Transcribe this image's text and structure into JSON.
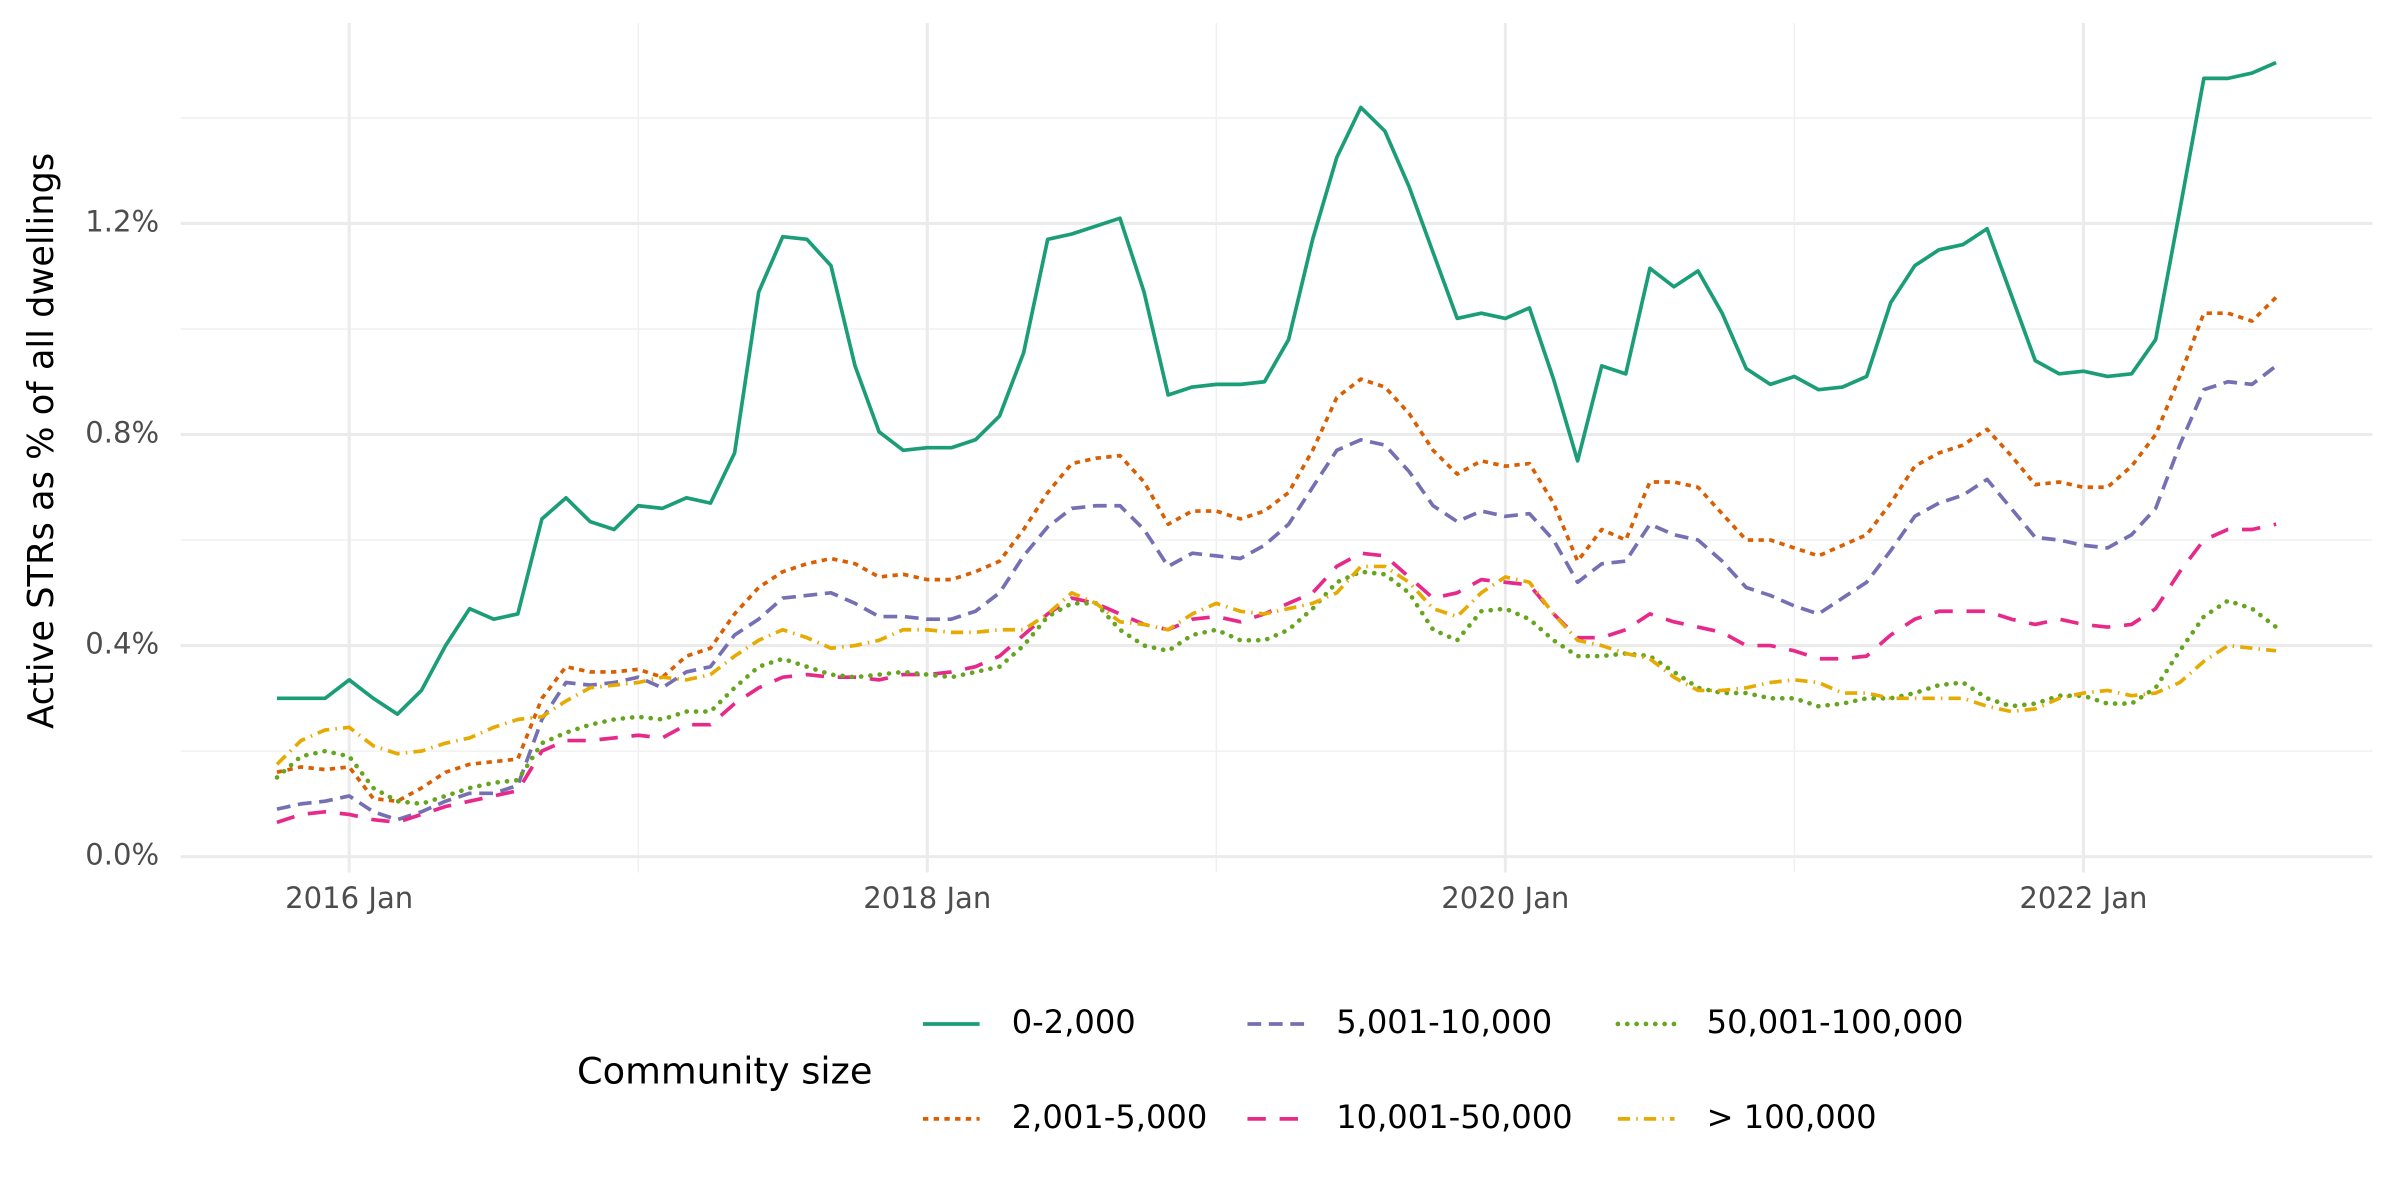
{
  "chart_data": {
    "type": "line",
    "y_label": "Active STRs as % of all dwellings",
    "legend_title": "Community size",
    "legend_position": "bottom",
    "grid": true,
    "x": [
      "2015-10",
      "2015-11",
      "2015-12",
      "2016-01",
      "2016-02",
      "2016-03",
      "2016-04",
      "2016-05",
      "2016-06",
      "2016-07",
      "2016-08",
      "2016-09",
      "2016-10",
      "2016-11",
      "2016-12",
      "2017-01",
      "2017-02",
      "2017-03",
      "2017-04",
      "2017-05",
      "2017-06",
      "2017-07",
      "2017-08",
      "2017-09",
      "2017-10",
      "2017-11",
      "2017-12",
      "2018-01",
      "2018-02",
      "2018-03",
      "2018-04",
      "2018-05",
      "2018-06",
      "2018-07",
      "2018-08",
      "2018-09",
      "2018-10",
      "2018-11",
      "2018-12",
      "2019-01",
      "2019-02",
      "2019-03",
      "2019-04",
      "2019-05",
      "2019-06",
      "2019-07",
      "2019-08",
      "2019-09",
      "2019-10",
      "2019-11",
      "2019-12",
      "2020-01",
      "2020-02",
      "2020-03",
      "2020-04",
      "2020-05",
      "2020-06",
      "2020-07",
      "2020-08",
      "2020-09",
      "2020-10",
      "2020-11",
      "2020-12",
      "2021-01",
      "2021-02",
      "2021-03",
      "2021-04",
      "2021-05",
      "2021-06",
      "2021-07",
      "2021-08",
      "2021-09",
      "2021-10",
      "2021-11",
      "2021-12",
      "2022-01",
      "2022-02",
      "2022-03",
      "2022-04",
      "2022-05",
      "2022-06",
      "2022-07",
      "2022-08",
      "2022-09"
    ],
    "xlim": [
      "2015-06",
      "2023-01"
    ],
    "xticks": [
      {
        "value": "2016-01",
        "label": "2016 Jan"
      },
      {
        "value": "2018-01",
        "label": "2018 Jan"
      },
      {
        "value": "2020-01",
        "label": "2020 Jan"
      },
      {
        "value": "2022-01",
        "label": "2022 Jan"
      }
    ],
    "xminor": [
      "2017-01",
      "2019-01",
      "2021-01"
    ],
    "ylim": [
      -0.03,
      1.58
    ],
    "yticks": [
      {
        "value": 0,
        "label": "0.0%"
      },
      {
        "value": 0.4,
        "label": "0.4%"
      },
      {
        "value": 0.8,
        "label": "0.8%"
      },
      {
        "value": 1.2,
        "label": "1.2%"
      }
    ],
    "yminor": [
      0.2,
      0.6,
      1.0,
      1.4
    ],
    "series": [
      {
        "name": "0-2,000",
        "color": "#1b9e77",
        "dash": "solid",
        "values": [
          0.3,
          0.3,
          0.3,
          0.335,
          0.3,
          0.27,
          0.315,
          0.4,
          0.47,
          0.45,
          0.46,
          0.64,
          0.68,
          0.635,
          0.62,
          0.665,
          0.66,
          0.68,
          0.67,
          0.765,
          1.07,
          1.175,
          1.17,
          1.12,
          0.93,
          0.805,
          0.77,
          0.775,
          0.775,
          0.79,
          0.835,
          0.955,
          1.17,
          1.18,
          1.195,
          1.21,
          1.07,
          0.875,
          0.89,
          0.895,
          0.895,
          0.9,
          0.98,
          1.17,
          1.325,
          1.42,
          1.375,
          1.27,
          1.145,
          1.02,
          1.03,
          1.02,
          1.04,
          0.905,
          0.75,
          0.93,
          0.915,
          1.115,
          1.08,
          1.11,
          1.03,
          0.925,
          0.895,
          0.91,
          0.885,
          0.89,
          0.91,
          1.05,
          1.12,
          1.15,
          1.16,
          1.19,
          1.065,
          0.94,
          0.915,
          0.92,
          0.91,
          0.915,
          0.98,
          1.225,
          1.475,
          1.475,
          1.485,
          1.505
        ]
      },
      {
        "name": "2,001-5,000",
        "color": "#d95f02",
        "dash": "dotted",
        "values": [
          0.16,
          0.17,
          0.165,
          0.17,
          0.11,
          0.105,
          0.13,
          0.16,
          0.175,
          0.18,
          0.185,
          0.3,
          0.36,
          0.35,
          0.35,
          0.355,
          0.34,
          0.38,
          0.395,
          0.46,
          0.51,
          0.54,
          0.555,
          0.565,
          0.555,
          0.53,
          0.535,
          0.525,
          0.525,
          0.54,
          0.56,
          0.62,
          0.69,
          0.745,
          0.755,
          0.76,
          0.71,
          0.63,
          0.655,
          0.655,
          0.64,
          0.655,
          0.69,
          0.77,
          0.87,
          0.905,
          0.89,
          0.84,
          0.77,
          0.725,
          0.75,
          0.74,
          0.745,
          0.67,
          0.56,
          0.62,
          0.6,
          0.71,
          0.71,
          0.7,
          0.65,
          0.6,
          0.6,
          0.585,
          0.57,
          0.59,
          0.61,
          0.67,
          0.74,
          0.765,
          0.78,
          0.81,
          0.76,
          0.705,
          0.71,
          0.7,
          0.7,
          0.74,
          0.8,
          0.91,
          1.03,
          1.03,
          1.015,
          1.06
        ]
      },
      {
        "name": "5,001-10,000",
        "color": "#7570b3",
        "dash": "dashed",
        "values": [
          0.09,
          0.1,
          0.105,
          0.115,
          0.085,
          0.07,
          0.085,
          0.105,
          0.12,
          0.12,
          0.135,
          0.26,
          0.33,
          0.325,
          0.33,
          0.34,
          0.32,
          0.35,
          0.36,
          0.42,
          0.45,
          0.49,
          0.495,
          0.5,
          0.48,
          0.455,
          0.455,
          0.45,
          0.45,
          0.465,
          0.5,
          0.57,
          0.625,
          0.66,
          0.665,
          0.665,
          0.62,
          0.55,
          0.575,
          0.57,
          0.565,
          0.59,
          0.63,
          0.7,
          0.77,
          0.79,
          0.78,
          0.73,
          0.665,
          0.635,
          0.655,
          0.645,
          0.65,
          0.6,
          0.52,
          0.555,
          0.56,
          0.63,
          0.61,
          0.6,
          0.56,
          0.51,
          0.495,
          0.475,
          0.46,
          0.49,
          0.52,
          0.58,
          0.645,
          0.67,
          0.685,
          0.715,
          0.66,
          0.605,
          0.6,
          0.59,
          0.585,
          0.61,
          0.66,
          0.78,
          0.885,
          0.9,
          0.895,
          0.93
        ]
      },
      {
        "name": "10,001-50,000",
        "color": "#e7298a",
        "dash": "longdash",
        "values": [
          0.065,
          0.08,
          0.085,
          0.08,
          0.07,
          0.065,
          0.08,
          0.095,
          0.105,
          0.115,
          0.125,
          0.2,
          0.22,
          0.22,
          0.225,
          0.23,
          0.225,
          0.25,
          0.25,
          0.29,
          0.32,
          0.34,
          0.345,
          0.34,
          0.34,
          0.335,
          0.345,
          0.345,
          0.35,
          0.36,
          0.38,
          0.42,
          0.46,
          0.49,
          0.48,
          0.46,
          0.44,
          0.43,
          0.45,
          0.455,
          0.445,
          0.46,
          0.48,
          0.5,
          0.55,
          0.575,
          0.57,
          0.53,
          0.49,
          0.5,
          0.525,
          0.52,
          0.515,
          0.46,
          0.415,
          0.415,
          0.43,
          0.46,
          0.445,
          0.435,
          0.425,
          0.4,
          0.4,
          0.39,
          0.375,
          0.375,
          0.38,
          0.42,
          0.45,
          0.465,
          0.465,
          0.465,
          0.45,
          0.44,
          0.45,
          0.44,
          0.435,
          0.44,
          0.47,
          0.54,
          0.6,
          0.62,
          0.62,
          0.63
        ]
      },
      {
        "name": "50,001-100,000",
        "color": "#66a61e",
        "dash": "dots",
        "values": [
          0.15,
          0.19,
          0.2,
          0.19,
          0.13,
          0.105,
          0.1,
          0.115,
          0.13,
          0.14,
          0.145,
          0.215,
          0.235,
          0.25,
          0.26,
          0.265,
          0.26,
          0.275,
          0.275,
          0.32,
          0.36,
          0.375,
          0.36,
          0.345,
          0.34,
          0.345,
          0.35,
          0.345,
          0.34,
          0.35,
          0.36,
          0.4,
          0.455,
          0.48,
          0.48,
          0.43,
          0.4,
          0.39,
          0.42,
          0.43,
          0.41,
          0.41,
          0.43,
          0.47,
          0.52,
          0.54,
          0.535,
          0.5,
          0.43,
          0.41,
          0.465,
          0.47,
          0.45,
          0.41,
          0.38,
          0.38,
          0.385,
          0.38,
          0.35,
          0.32,
          0.31,
          0.31,
          0.3,
          0.3,
          0.285,
          0.29,
          0.3,
          0.3,
          0.31,
          0.325,
          0.33,
          0.3,
          0.285,
          0.29,
          0.305,
          0.305,
          0.29,
          0.29,
          0.32,
          0.39,
          0.455,
          0.485,
          0.47,
          0.435
        ]
      },
      {
        "name": "> 100,000",
        "color": "#e6ab02",
        "dash": "dotdash",
        "values": [
          0.175,
          0.22,
          0.24,
          0.245,
          0.21,
          0.195,
          0.2,
          0.215,
          0.225,
          0.245,
          0.26,
          0.265,
          0.295,
          0.32,
          0.325,
          0.33,
          0.34,
          0.335,
          0.345,
          0.38,
          0.41,
          0.43,
          0.415,
          0.395,
          0.4,
          0.41,
          0.43,
          0.43,
          0.425,
          0.425,
          0.43,
          0.43,
          0.46,
          0.5,
          0.48,
          0.445,
          0.44,
          0.43,
          0.46,
          0.48,
          0.465,
          0.46,
          0.47,
          0.48,
          0.5,
          0.55,
          0.55,
          0.52,
          0.47,
          0.455,
          0.5,
          0.53,
          0.52,
          0.46,
          0.41,
          0.4,
          0.385,
          0.375,
          0.34,
          0.315,
          0.315,
          0.32,
          0.33,
          0.335,
          0.33,
          0.31,
          0.31,
          0.3,
          0.3,
          0.3,
          0.3,
          0.285,
          0.275,
          0.28,
          0.3,
          0.31,
          0.315,
          0.305,
          0.31,
          0.33,
          0.37,
          0.4,
          0.395,
          0.39
        ]
      }
    ]
  }
}
